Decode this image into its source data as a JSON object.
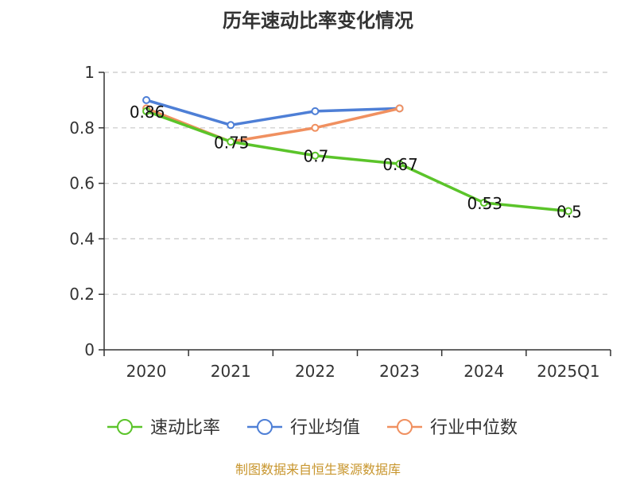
{
  "chart_data": {
    "type": "line",
    "title": "历年速动比率变化情况",
    "categories": [
      "2020",
      "2021",
      "2022",
      "2023",
      "2024",
      "2025Q1"
    ],
    "ylim": [
      0,
      1
    ],
    "yticks": [
      "0",
      "0.2",
      "0.4",
      "0.6",
      "0.8",
      "1"
    ],
    "grid": true,
    "legend_position": "bottom",
    "series": [
      {
        "name": "速动比率",
        "color": "#5bc42a",
        "values": [
          0.86,
          0.75,
          0.7,
          0.67,
          0.53,
          0.5
        ],
        "labels": [
          "0.86",
          "0.75",
          "0.7",
          "0.67",
          "0.53",
          "0.5"
        ]
      },
      {
        "name": "行业均值",
        "color": "#4e7fd6",
        "values": [
          0.9,
          0.81,
          0.86,
          0.87,
          null,
          null
        ]
      },
      {
        "name": "行业中位数",
        "color": "#f09060",
        "values": [
          0.87,
          0.75,
          0.8,
          0.87,
          null,
          null
        ]
      }
    ],
    "source": "制图数据来自恒生聚源数据库"
  }
}
